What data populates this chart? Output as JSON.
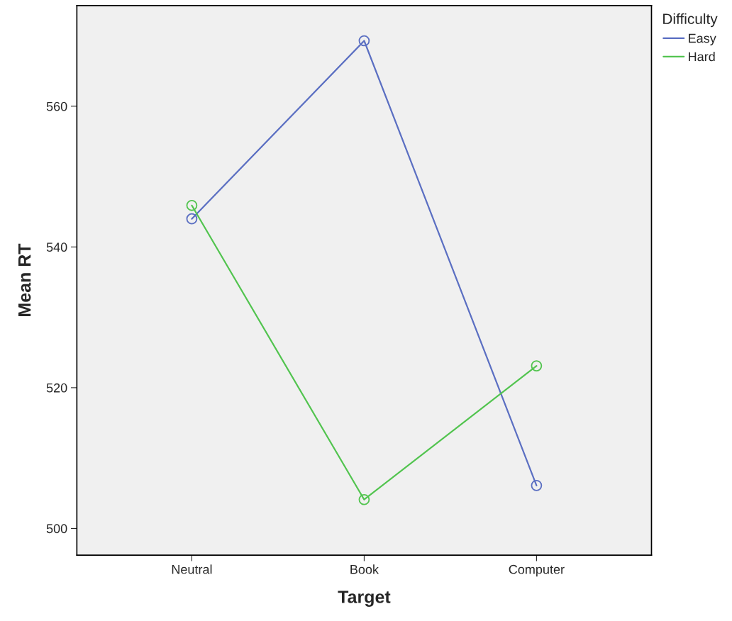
{
  "chart_data": {
    "type": "line",
    "xlabel": "Target",
    "ylabel": "Mean RT",
    "legend_title": "Difficulty",
    "categories": [
      "Neutral",
      "Book",
      "Computer"
    ],
    "series": [
      {
        "name": "Easy",
        "color": "#5b6fc2",
        "values": [
          544.0,
          569.3,
          506.1
        ]
      },
      {
        "name": "Hard",
        "color": "#52c44f",
        "values": [
          545.9,
          504.1,
          523.1
        ]
      }
    ],
    "ylim": [
      496.2,
      574.3
    ],
    "yticks": [
      500,
      520,
      540,
      560
    ],
    "marker": "circle",
    "grid": false,
    "legend": "top right"
  }
}
